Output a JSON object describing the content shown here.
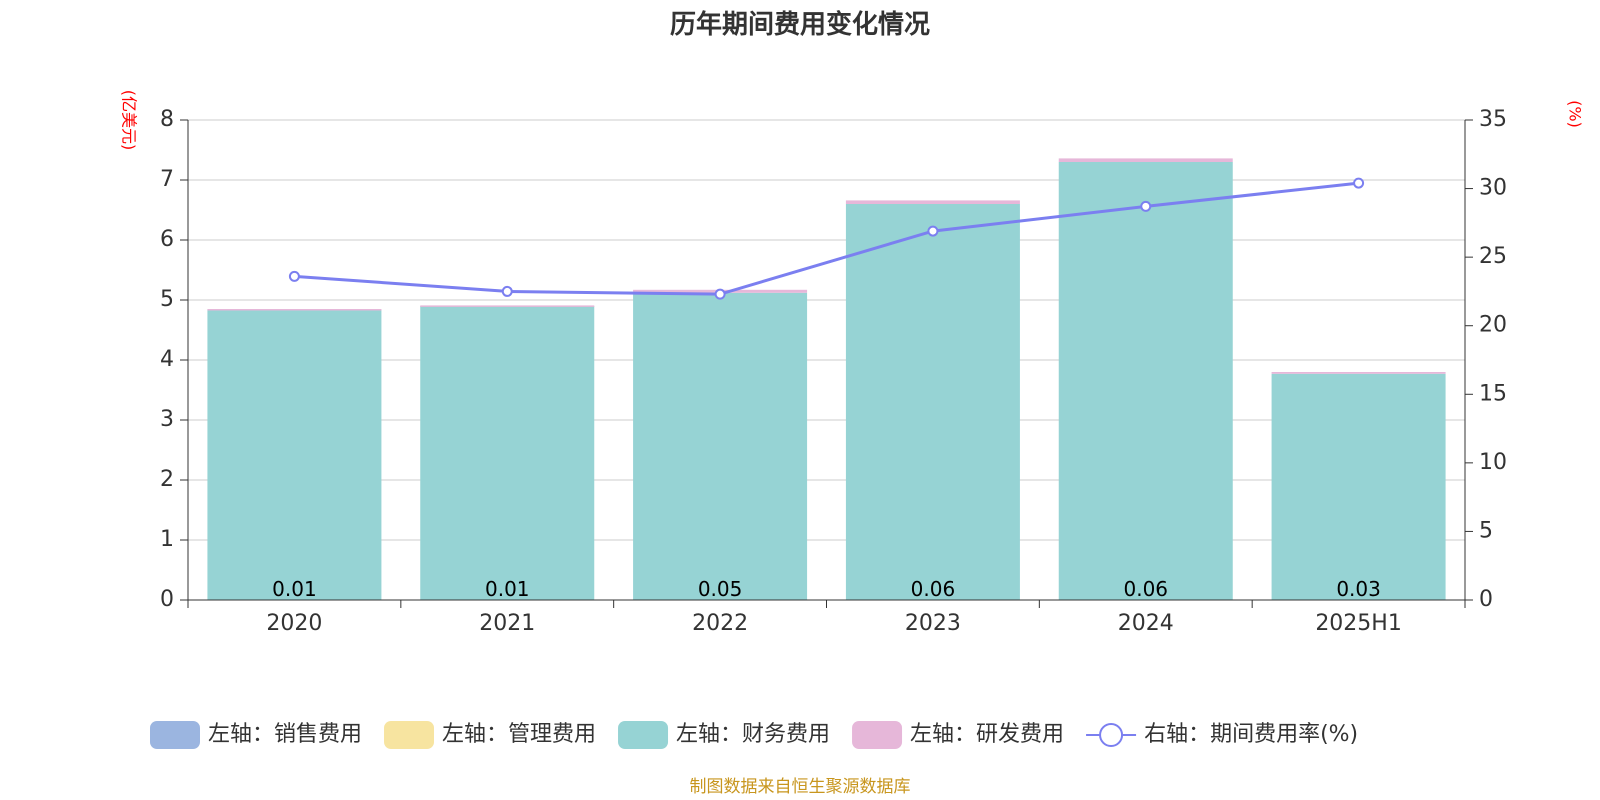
{
  "chart_data": {
    "type": "bar",
    "title": "历年期间费用变化情况",
    "categories": [
      "2020",
      "2021",
      "2022",
      "2023",
      "2024",
      "2025H1"
    ],
    "y_left": {
      "unit": "(亿美元)",
      "ylim": [
        0,
        8
      ],
      "ticks": [
        0,
        1,
        2,
        3,
        4,
        5,
        6,
        7,
        8
      ]
    },
    "y_right": {
      "unit": "(%)",
      "ylim": [
        0,
        35
      ],
      "ticks": [
        0,
        5,
        10,
        15,
        20,
        25,
        30,
        35
      ]
    },
    "grid": true,
    "stacked": true,
    "series": [
      {
        "name": "左轴：销售费用",
        "type": "bar",
        "axis": "left",
        "color": "#9bb5e0",
        "values": [
          0,
          0,
          0,
          0,
          0,
          0
        ]
      },
      {
        "name": "左轴：管理费用",
        "type": "bar",
        "axis": "left",
        "color": "#f7e4a0",
        "values": [
          0,
          0,
          0,
          0,
          0,
          0
        ]
      },
      {
        "name": "左轴：财务费用",
        "type": "bar",
        "axis": "left",
        "color": "#96d3d4",
        "values": [
          4.84,
          4.9,
          5.12,
          6.6,
          7.3,
          3.77
        ]
      },
      {
        "name": "左轴：研发费用",
        "type": "bar",
        "axis": "left",
        "color": "#e6b7d9",
        "values": [
          0.01,
          0.01,
          0.05,
          0.06,
          0.06,
          0.03
        ],
        "labels": [
          "0.01",
          "0.01",
          "0.05",
          "0.06",
          "0.06",
          "0.03"
        ]
      },
      {
        "name": "右轴：期间费用率(%)",
        "type": "line",
        "axis": "right",
        "color": "#7b7ff0",
        "values": [
          23.6,
          22.5,
          22.3,
          26.9,
          28.7,
          30.4
        ]
      }
    ],
    "legend_position": "bottom",
    "source": "制图数据来自恒生聚源数据库"
  }
}
